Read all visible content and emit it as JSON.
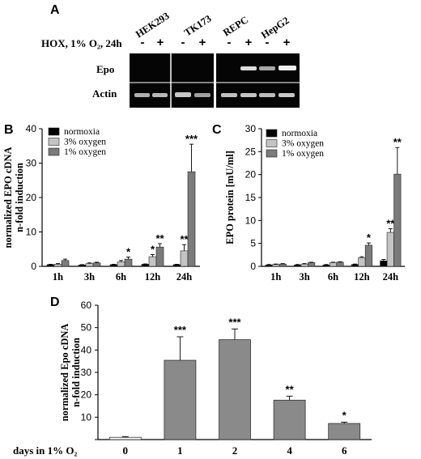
{
  "panels": {
    "A": {
      "letter": "A",
      "cell_lines": [
        "HEK293",
        "TK173",
        "REPC",
        "HepG2"
      ],
      "condition_label": "HOX, 1% O₂, 24h",
      "lane_signs": [
        "-",
        "+",
        "-",
        "+",
        "-",
        "+",
        "-",
        "+"
      ],
      "rows": [
        "Epo",
        "Actin"
      ]
    },
    "B": {
      "letter": "B"
    },
    "C": {
      "letter": "C"
    },
    "D": {
      "letter": "D"
    }
  },
  "colors": {
    "normoxia": "#000000",
    "oxy3": "#c4c4c4",
    "oxy1": "#7b7b7b",
    "panelD_bar": "#8a8a8a",
    "panelD_bar0": "#ffffff"
  },
  "chart_data": [
    {
      "panel": "B",
      "type": "bar",
      "ylabel": "normalized EPO cDNA n-fold induction",
      "ylabel_lines": [
        "normalized EPO cDNA",
        "n-fold induction"
      ],
      "ylim": [
        0,
        40
      ],
      "yticks": [
        "0",
        "10",
        "20",
        "30",
        "40"
      ],
      "categories": [
        "1h",
        "3h",
        "6h",
        "12h",
        "24h"
      ],
      "legend": [
        "normoxia",
        "3% oxygen",
        "1% oxygen"
      ],
      "legend_position": "top-left",
      "series": [
        {
          "name": "normoxia",
          "values": [
            0.5,
            0.4,
            0.5,
            0.6,
            0.5
          ],
          "errors": [
            0.1,
            0.1,
            0.1,
            0.1,
            0.1
          ],
          "sig": [
            "",
            "",
            "",
            "",
            ""
          ]
        },
        {
          "name": "3% oxygen",
          "values": [
            0.6,
            0.8,
            1.3,
            2.8,
            4.5
          ],
          "errors": [
            0.2,
            0.2,
            0.4,
            0.6,
            1.8
          ],
          "sig": [
            "",
            "",
            "",
            "*",
            "**"
          ]
        },
        {
          "name": "1% oxygen",
          "values": [
            1.7,
            1.0,
            2.1,
            5.6,
            27.5
          ],
          "errors": [
            0.4,
            0.2,
            0.6,
            1.0,
            8.0
          ],
          "sig": [
            "",
            "",
            "*",
            "**",
            "***"
          ]
        }
      ]
    },
    {
      "panel": "C",
      "type": "bar",
      "ylabel": "EPO protein [mU/ml]",
      "ylim": [
        0,
        30
      ],
      "yticks": [
        "0",
        "5",
        "10",
        "15",
        "20",
        "25",
        "30"
      ],
      "categories": [
        "1h",
        "3h",
        "6h",
        "12h",
        "24h"
      ],
      "legend": [
        "normoxia",
        "3% oxygen",
        "1% oxygen"
      ],
      "legend_position": "top-left",
      "series": [
        {
          "name": "normoxia",
          "values": [
            0.3,
            0.3,
            0.3,
            0.4,
            1.2
          ],
          "errors": [
            0.1,
            0.1,
            0.1,
            0.1,
            0.3
          ],
          "sig": [
            "",
            "",
            "",
            "",
            ""
          ]
        },
        {
          "name": "3% oxygen",
          "values": [
            0.4,
            0.5,
            0.8,
            1.9,
            7.4
          ],
          "errors": [
            0.1,
            0.1,
            0.1,
            0.2,
            0.8
          ],
          "sig": [
            "",
            "",
            "",
            "",
            "**"
          ]
        },
        {
          "name": "1% oxygen",
          "values": [
            0.5,
            0.8,
            0.9,
            4.6,
            20.1
          ],
          "errors": [
            0.1,
            0.1,
            0.1,
            0.5,
            5.8
          ],
          "sig": [
            "",
            "",
            "",
            "*",
            "**"
          ]
        }
      ]
    },
    {
      "panel": "D",
      "type": "bar",
      "ylabel": "normalized Epo cDNA n-fold induction",
      "ylabel_lines": [
        "normalized Epo cDNA",
        "n-fold induction"
      ],
      "xlabel": "days in 1% O₂",
      "ylim": [
        0,
        60
      ],
      "yticks": [
        "",
        "10",
        "20",
        "30",
        "40",
        "50",
        "60"
      ],
      "categories": [
        "0",
        "1",
        "2",
        "4",
        "6"
      ],
      "values": [
        1.0,
        35.4,
        44.6,
        17.6,
        7.2
      ],
      "errors": [
        0.3,
        10.5,
        4.8,
        1.8,
        0.6
      ],
      "sig": [
        "",
        "***",
        "***",
        "**",
        "*"
      ]
    }
  ]
}
